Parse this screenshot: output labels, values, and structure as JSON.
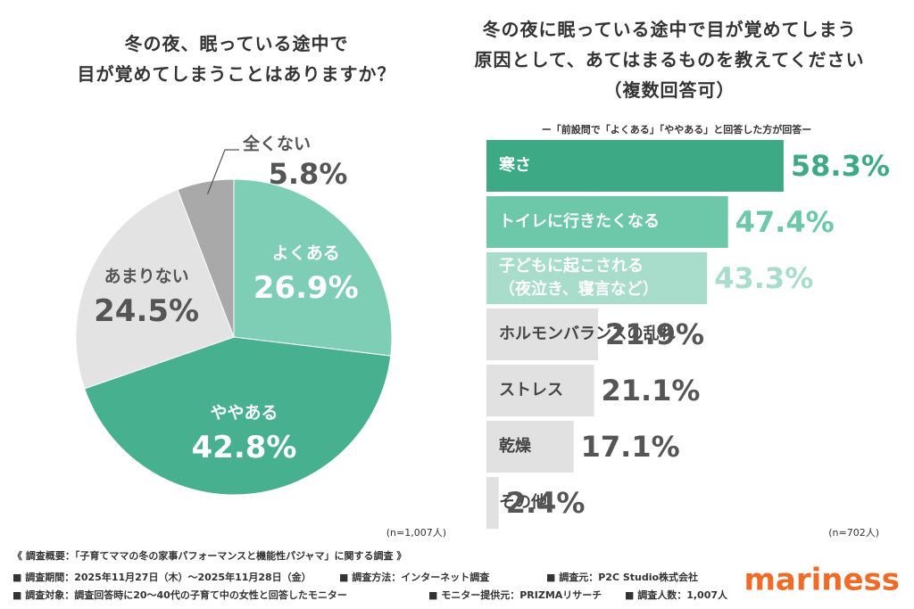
{
  "chart_data": [
    {
      "type": "pie",
      "title": "冬の夜、眠っている途中で\n目が覚めてしまうことはありますか？",
      "categories": [
        "よくある",
        "ややある",
        "あまりない",
        "全くない"
      ],
      "values": [
        26.9,
        42.8,
        24.5,
        5.8
      ],
      "value_labels": [
        "26.9%",
        "42.8%",
        "24.5%",
        "5.8%"
      ],
      "colors": [
        "#7ecdb5",
        "#47b08f",
        "#e3e3e3",
        "#a9a9a9"
      ],
      "note": "(n=1,007人)"
    },
    {
      "type": "hbar",
      "title": "冬の夜に眠っている途中で目が覚めてしまう\n原因として、あてはまるものを教えてください\n（複数回答可）",
      "subtitle": "ー「前設問で「よくある」「ややある」と回答した方が回答ー",
      "categories": [
        "寒さ",
        "トイレに行きたくなる",
        "子どもに起こされる\n（夜泣き、寝言など）",
        "ホルモンバランスの乱れ",
        "ストレス",
        "乾燥",
        "その他"
      ],
      "values": [
        58.3,
        47.4,
        43.3,
        21.9,
        21.1,
        17.1,
        2.4
      ],
      "value_labels": [
        "58.3%",
        "47.4%",
        "43.3%",
        "21.9%",
        "21.1%",
        "17.1%",
        "2.4%"
      ],
      "colors": [
        "#3eaa85",
        "#6dc7a9",
        "#a8ddcb",
        "#e1e1e1",
        "#e1e1e1",
        "#e1e1e1",
        "#e1e1e1"
      ],
      "label_colors": [
        "#3eaa85",
        "#6dc7a9",
        "#a8ddcb",
        "#555555",
        "#555555",
        "#555555",
        "#555555"
      ],
      "note": "(n=702人)"
    }
  ],
  "footer": {
    "heading": "《 調査概要：「子育てママの冬の家事パフォーマンスと機能性パジャマ」に関する調査 》",
    "items": [
      "■ 調査期間：2025年11月27日（木）～2025年11月28日（金）",
      "■ 調査方法：インターネット調査",
      "■ 調査元：P2C Studio株式会社",
      "■ 調査対象：調査回答時に20～40代の子育て中の女性と回答したモニター",
      "■ モニター提供元：PRIZMAリサーチ",
      "■ 調査人数：1,007人"
    ],
    "brand": "mariness"
  }
}
